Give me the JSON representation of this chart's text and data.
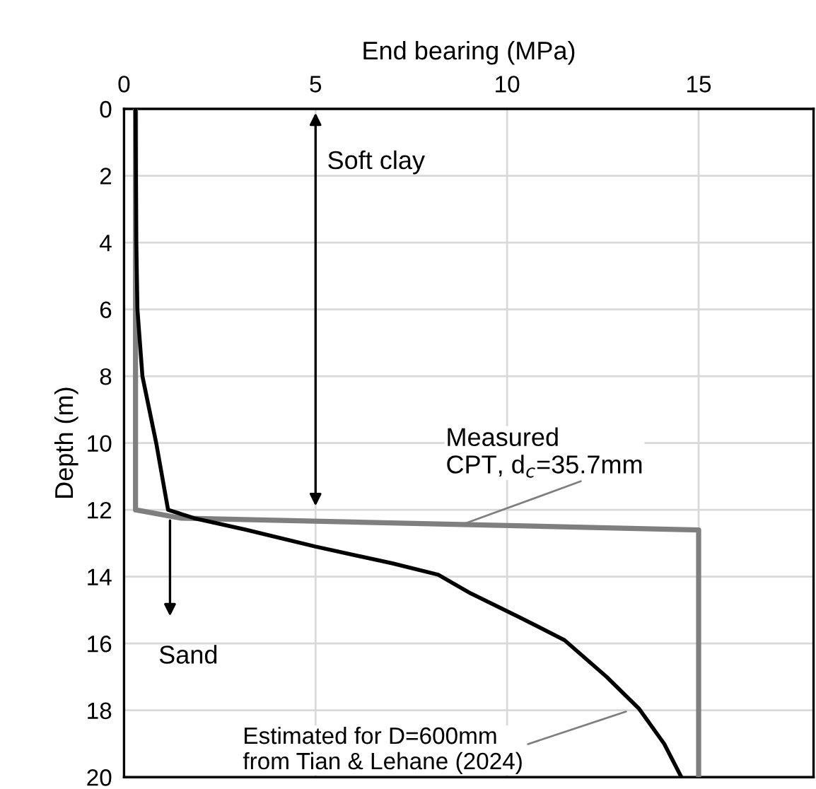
{
  "chart_data": {
    "type": "line",
    "xlabel": "End bearing (MPa)",
    "ylabel": "Depth (m)",
    "xlim": [
      0,
      18
    ],
    "xticks": [
      0,
      5,
      10,
      15
    ],
    "ylim": [
      20,
      0
    ],
    "yticks": [
      0,
      2,
      4,
      6,
      8,
      10,
      12,
      14,
      16,
      18,
      20
    ],
    "grid": true,
    "legend": false,
    "marker": "none",
    "line_style": "solid",
    "series": [
      {
        "color": "#7f7f7f",
        "x": [
          0.3,
          0.3,
          1.5,
          15,
          15
        ],
        "values": [
          0,
          12,
          12.25,
          12.6,
          20
        ]
      },
      {
        "color": "#000000",
        "x": [
          0.3,
          0.32,
          0.35,
          0.48,
          0.84,
          1.15,
          1.83,
          3.2,
          5.0,
          7.0,
          8.2,
          9.05,
          10.3,
          11.5,
          12.6,
          13.45,
          14.1,
          14.55
        ],
        "values": [
          0,
          4,
          6,
          8,
          10,
          12,
          12.25,
          12.6,
          13.1,
          13.6,
          13.94,
          14.5,
          15.2,
          15.9,
          17.0,
          17.96,
          19.0,
          20
        ]
      }
    ],
    "annotations": [
      "Soft clay",
      "Sand",
      {
        "text": "Measured\nCPT, d$_{c}$=35.7mm",
        "x": 8.8,
        "y": 12.45
      },
      {
        "text": "Estimated for D=600mm\nfrom Tian & Lehane (2024)",
        "x": 13.2,
        "y": 18.0
      }
    ]
  }
}
